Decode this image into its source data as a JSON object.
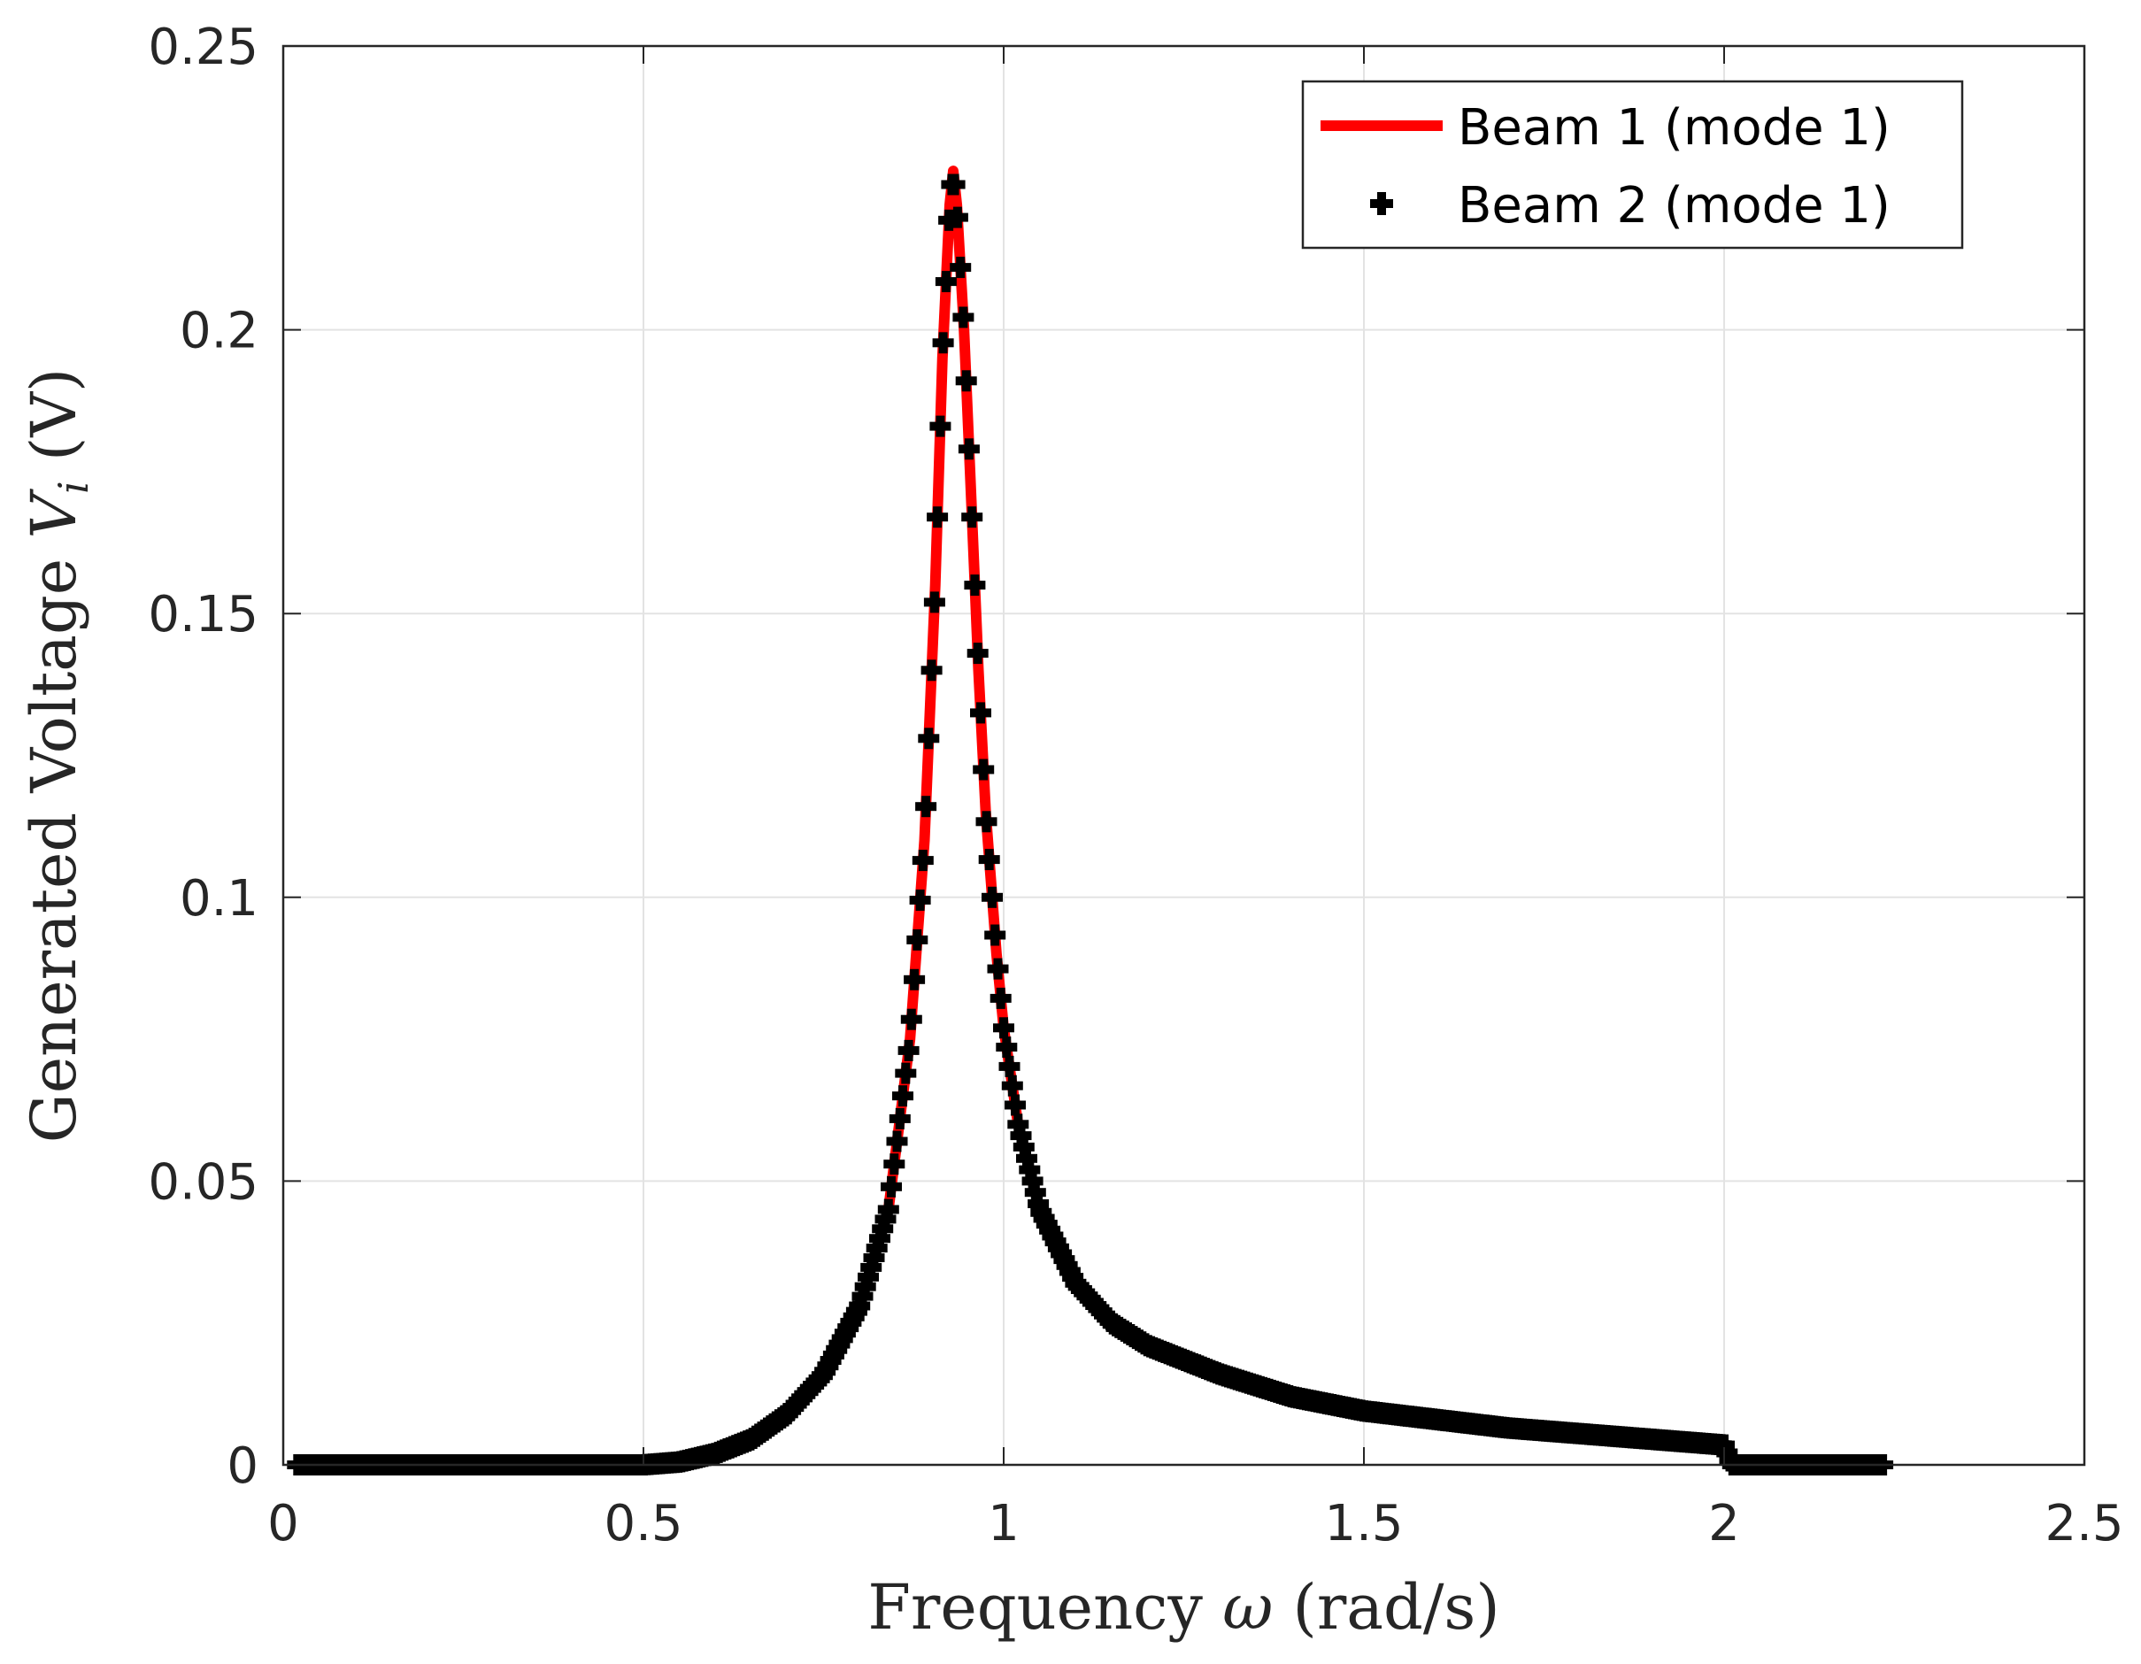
{
  "chart_data": {
    "type": "line",
    "xlabel": "Frequency ω (rad/s)",
    "xlabel_parts": [
      "Frequency ",
      "ω",
      " (rad/s)"
    ],
    "ylabel": "Generated Voltage Vᵢ (V)",
    "ylabel_parts": [
      "Generated Voltage ",
      "V",
      "i",
      " (V)"
    ],
    "xlim": [
      0,
      2.5
    ],
    "ylim": [
      0,
      0.25
    ],
    "xticks": [
      0,
      0.5,
      1,
      1.5,
      2,
      2.5
    ],
    "xtick_labels": [
      "0",
      "0.5",
      "1",
      "1.5",
      "2",
      "2.5"
    ],
    "yticks": [
      0,
      0.05,
      0.1,
      0.15,
      0.2,
      0.25
    ],
    "ytick_labels": [
      "0",
      "0.05",
      "0.1",
      "0.15",
      "0.2",
      "0.25"
    ],
    "grid": true,
    "legend_position": "top-right",
    "series": [
      {
        "name": "Beam 1 (mode 1)",
        "style": "line",
        "color": "#ff0000",
        "x": [
          0.02,
          0.3,
          0.5,
          0.55,
          0.6,
          0.65,
          0.7,
          0.75,
          0.8,
          0.84,
          0.87,
          0.89,
          0.905,
          0.915,
          0.925,
          0.93,
          0.935,
          0.945,
          0.955,
          0.965,
          0.975,
          0.99,
          1.0,
          1.02,
          1.05,
          1.1,
          1.15,
          1.2,
          1.3,
          1.4,
          1.5,
          1.6,
          1.7,
          1.8,
          1.9,
          2.0,
          2.01,
          2.1,
          2.22
        ],
        "values": [
          0.0,
          0.0,
          0.0,
          0.0005,
          0.002,
          0.0045,
          0.009,
          0.016,
          0.028,
          0.045,
          0.075,
          0.11,
          0.155,
          0.195,
          0.222,
          0.228,
          0.222,
          0.2,
          0.17,
          0.14,
          0.115,
          0.09,
          0.077,
          0.06,
          0.045,
          0.032,
          0.025,
          0.021,
          0.016,
          0.012,
          0.0095,
          0.008,
          0.0065,
          0.0055,
          0.0045,
          0.0035,
          0.0,
          0.0,
          0.0
        ]
      },
      {
        "name": "Beam 2 (mode 1)",
        "style": "markers",
        "marker": "plus",
        "color": "#000000",
        "x_start": 0.02,
        "x_end": 2.22,
        "x_step": 0.004
      }
    ]
  },
  "colors": {
    "beam1": "#ff0000",
    "beam2": "#000000",
    "axis": "#262626",
    "grid": "#e3e3e3"
  }
}
